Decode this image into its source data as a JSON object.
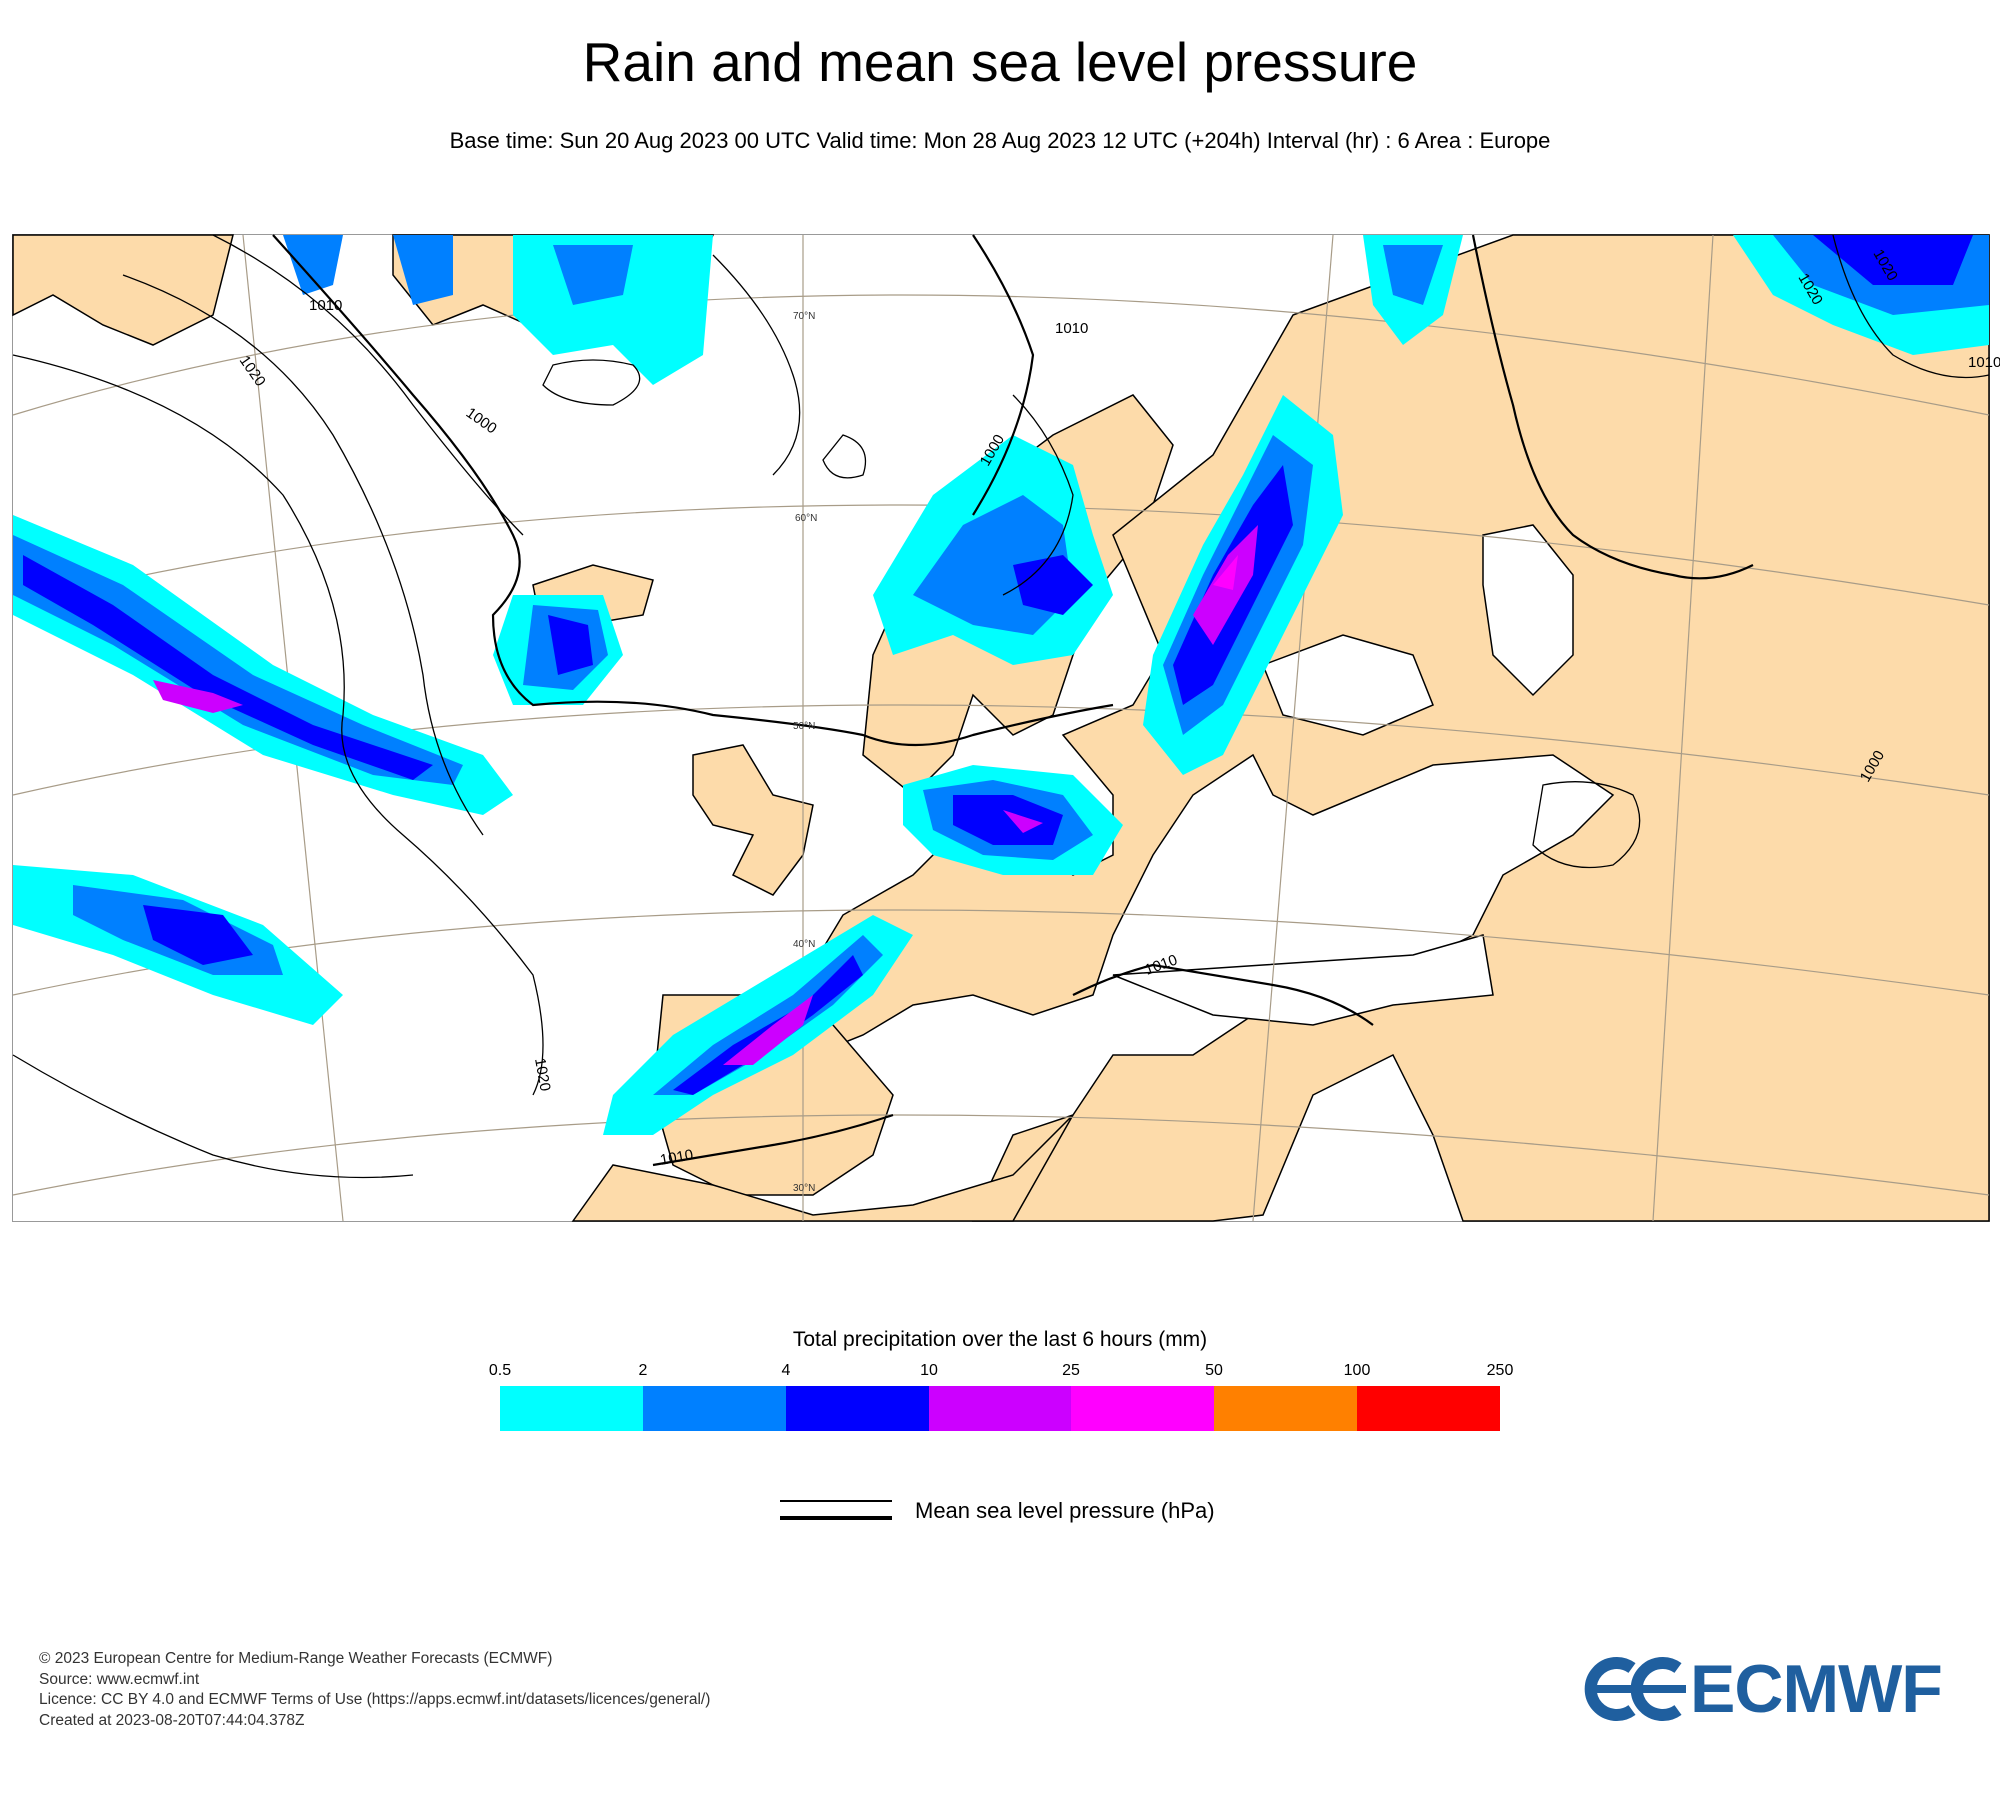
{
  "title": "Rain and mean sea level pressure",
  "subtitle": "Base time: Sun 20 Aug 2023 00 UTC Valid time: Mon 28 Aug 2023 12 UTC (+204h) Interval (hr) : 6 Area : Europe",
  "map": {
    "area": "Europe",
    "land_color": "#fddbaa",
    "sea_color": "#ffffff",
    "latitude_labels": [
      "70°N",
      "60°N",
      "50°N",
      "40°N",
      "30°N"
    ],
    "isobar_labels": [
      "1010",
      "1020",
      "1000",
      "1000",
      "1010",
      "1020",
      "1020",
      "1010",
      "1010",
      "1020",
      "1000",
      "1010"
    ]
  },
  "legend": {
    "title": "Total precipitation over the last 6 hours (mm)",
    "ticks": [
      "0.5",
      "2",
      "4",
      "10",
      "25",
      "50",
      "100",
      "250"
    ],
    "colors": [
      "#00ffff",
      "#0080ff",
      "#0000ff",
      "#cc00ff",
      "#ff00ff",
      "#ff8000",
      "#ff0000"
    ],
    "line_label": "Mean sea level pressure (hPa)"
  },
  "footer": {
    "copyright": "© 2023 European Centre for Medium-Range Weather Forecasts (ECMWF)",
    "source": "Source: www.ecmwf.int",
    "licence": "Licence: CC BY 4.0 and ECMWF Terms of Use (https://apps.ecmwf.int/datasets/licences/general/)",
    "created": "Created at 2023-08-20T07:44:04.378Z"
  },
  "logo": {
    "text": "ECMWF",
    "color": "#1f5f9f"
  }
}
